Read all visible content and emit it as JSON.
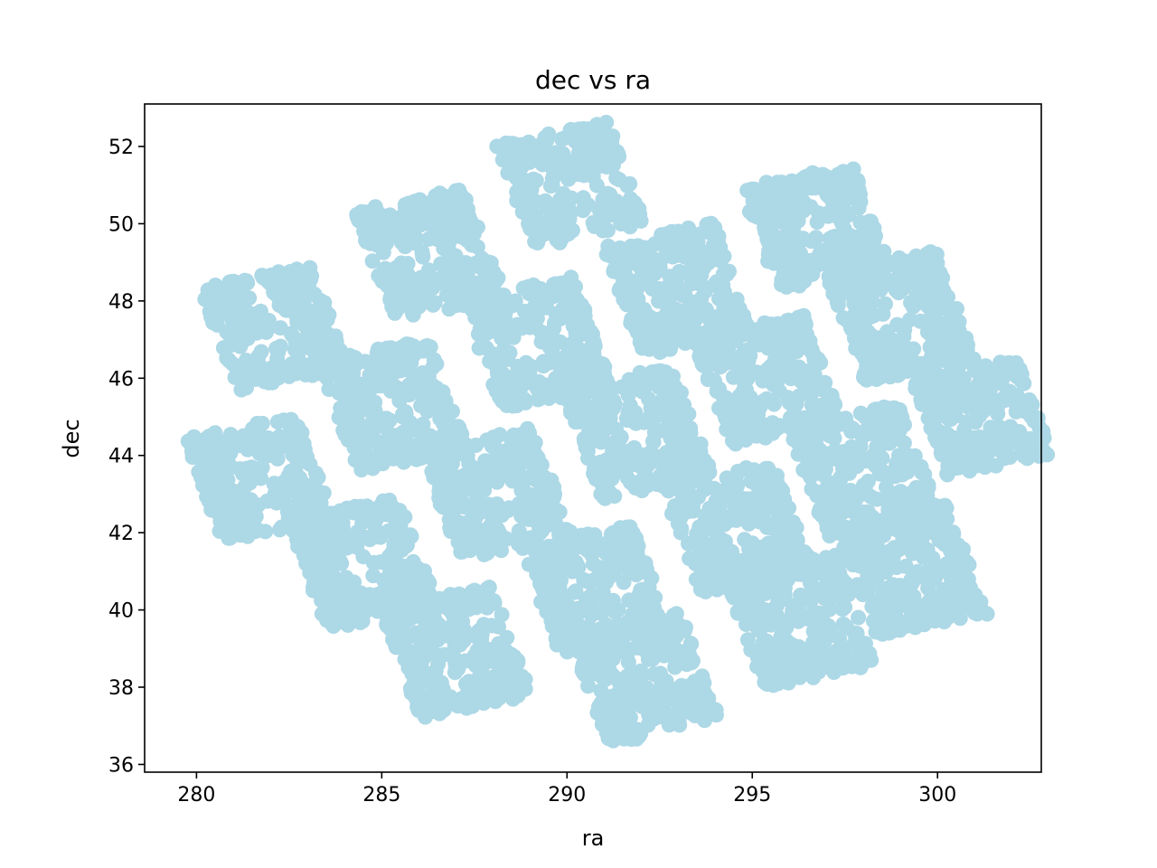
{
  "chart_data": {
    "type": "scatter",
    "title": "dec vs ra",
    "xlabel": "ra",
    "ylabel": "dec",
    "xlim": [
      278.6,
      302.8
    ],
    "ylim": [
      35.8,
      53.1
    ],
    "xticks": [
      280,
      285,
      290,
      295,
      300
    ],
    "yticks": [
      36,
      38,
      40,
      42,
      44,
      46,
      48,
      50,
      52
    ],
    "marker_color": "#add8e6",
    "grid": false,
    "legend": "none",
    "clusters": [
      {
        "cx": 282.1,
        "cy": 47.3,
        "du": 1.6,
        "dv": 1.5
      },
      {
        "cx": 286.3,
        "cy": 49.2,
        "du": 1.6,
        "dv": 1.6
      },
      {
        "cx": 290.1,
        "cy": 51.0,
        "du": 1.6,
        "dv": 1.5
      },
      {
        "cx": 285.3,
        "cy": 45.3,
        "du": 1.6,
        "dv": 1.6
      },
      {
        "cx": 289.2,
        "cy": 46.9,
        "du": 1.6,
        "dv": 1.6
      },
      {
        "cx": 293.0,
        "cy": 48.3,
        "du": 1.6,
        "dv": 1.6
      },
      {
        "cx": 296.7,
        "cy": 49.9,
        "du": 1.6,
        "dv": 1.5
      },
      {
        "cx": 281.7,
        "cy": 43.4,
        "du": 1.6,
        "dv": 1.5
      },
      {
        "cx": 288.1,
        "cy": 43.0,
        "du": 1.6,
        "dv": 1.6
      },
      {
        "cx": 291.9,
        "cy": 44.6,
        "du": 1.6,
        "dv": 1.6
      },
      {
        "cx": 295.4,
        "cy": 46.0,
        "du": 1.6,
        "dv": 1.6
      },
      {
        "cx": 299.0,
        "cy": 47.6,
        "du": 1.6,
        "dv": 1.6
      },
      {
        "cx": 284.5,
        "cy": 41.2,
        "du": 1.6,
        "dv": 1.6
      },
      {
        "cx": 290.8,
        "cy": 40.5,
        "du": 1.6,
        "dv": 1.6
      },
      {
        "cx": 294.6,
        "cy": 42.1,
        "du": 1.6,
        "dv": 1.6
      },
      {
        "cx": 298.0,
        "cy": 43.6,
        "du": 1.6,
        "dv": 1.6
      },
      {
        "cx": 301.2,
        "cy": 45.0,
        "du": 1.5,
        "dv": 1.4
      },
      {
        "cx": 287.0,
        "cy": 38.9,
        "du": 1.6,
        "dv": 1.6
      },
      {
        "cx": 292.1,
        "cy": 38.2,
        "du": 1.6,
        "dv": 1.6
      },
      {
        "cx": 296.3,
        "cy": 39.7,
        "du": 1.6,
        "dv": 1.6
      },
      {
        "cx": 299.3,
        "cy": 41.0,
        "du": 1.6,
        "dv": 1.6
      }
    ]
  }
}
